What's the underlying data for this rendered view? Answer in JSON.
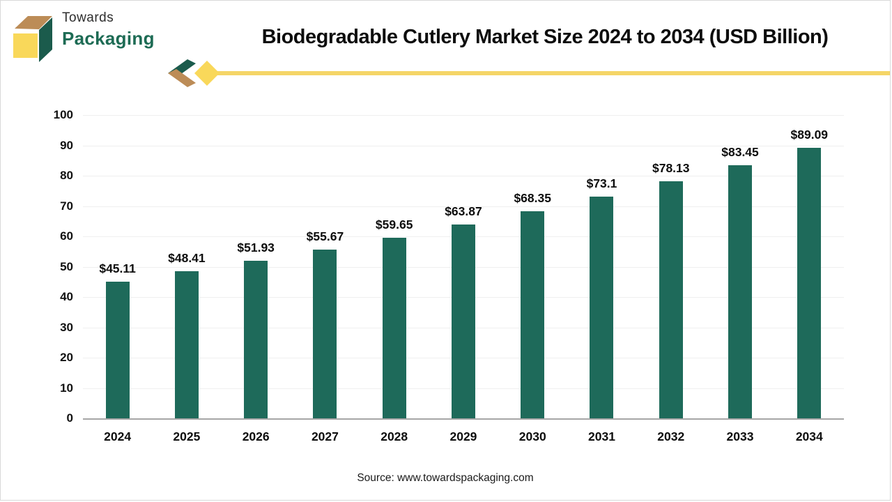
{
  "brand": {
    "name_line1": "Towards",
    "name_line2": "Packaging",
    "logo_colors": {
      "top_face": "#bc8c57",
      "front_face": "#f9d85a",
      "side_face": "#1b5b4c"
    }
  },
  "header": {
    "title": "Biodegradable Cutlery Market  Size 2024 to 2034 (USD Billion)",
    "divider_color": "#f5d567",
    "chevron_colors": {
      "upper": "#1b5b4c",
      "lower": "#bc8c57",
      "diamond": "#f9d85a"
    }
  },
  "chart_data": {
    "type": "bar",
    "title": "Biodegradable Cutlery Market Size 2024 to 2034 (USD Billion)",
    "unit": "USD Billion",
    "categories": [
      "2024",
      "2025",
      "2026",
      "2027",
      "2028",
      "2029",
      "2030",
      "2031",
      "2032",
      "2033",
      "2034"
    ],
    "values": [
      45.11,
      48.41,
      51.93,
      55.67,
      59.65,
      63.87,
      68.35,
      73.1,
      78.13,
      83.45,
      89.09
    ],
    "value_labels": [
      "$45.11",
      "$48.41",
      "$51.93",
      "$55.67",
      "$59.65",
      "$63.87",
      "$68.35",
      "$73.1",
      "$78.13",
      "$83.45",
      "$89.09"
    ],
    "xlabel": "",
    "ylabel": "",
    "ylim": [
      0,
      100
    ],
    "yticks": [
      0,
      10,
      20,
      30,
      40,
      50,
      60,
      70,
      80,
      90,
      100
    ],
    "grid": true,
    "legend": "none",
    "bar_color": "#1e6a5a"
  },
  "footer": {
    "source": "Source: www.towardspackaging.com"
  }
}
